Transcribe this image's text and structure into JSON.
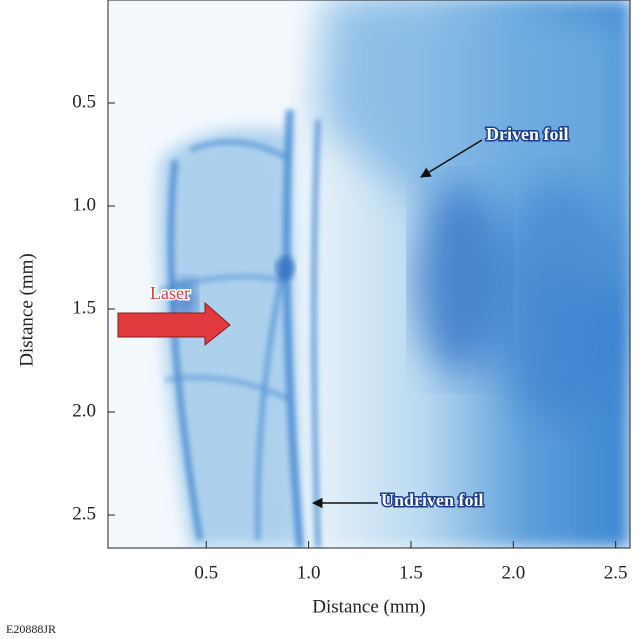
{
  "chart_data": {
    "type": "image",
    "xlabel": "Distance (mm)",
    "ylabel": "Distance (mm)",
    "xlim": [
      0.02,
      2.57
    ],
    "ylim": [
      0,
      2.66
    ],
    "invert_y": true,
    "xticks": [
      0.5,
      {
        "value": 1,
        "label": "1.0"
      },
      1.5,
      {
        "value": 2,
        "label": "2.0"
      },
      2.5
    ],
    "yticks": [
      0.5,
      {
        "value": 1,
        "label": "1.0"
      },
      1.5,
      {
        "value": 2,
        "label": "2.0"
      },
      2.5
    ],
    "annotations": [
      "Laser",
      "Driven foil",
      "Undriven foil"
    ],
    "figure_id": "E20888JR"
  }
}
